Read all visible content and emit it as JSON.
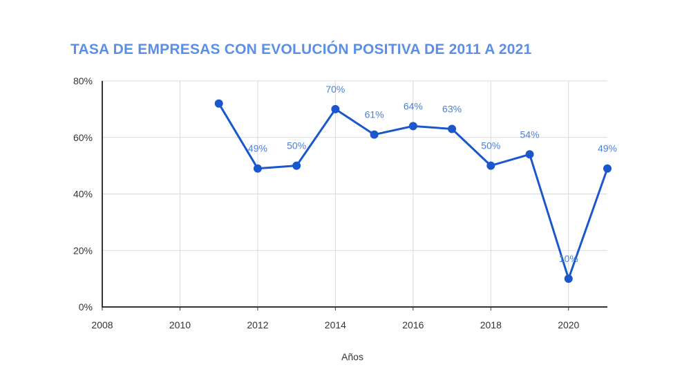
{
  "chart_data": {
    "type": "line",
    "title": "TASA DE EMPRESAS CON EVOLUCIÓN POSITIVA DE 2011 A 2021",
    "xlabel": "Años",
    "ylabel": "",
    "xlim": [
      2008,
      2021
    ],
    "ylim": [
      0,
      80
    ],
    "x_ticks": [
      2008,
      2010,
      2012,
      2014,
      2016,
      2018,
      2020
    ],
    "y_ticks": [
      0,
      20,
      40,
      60,
      80
    ],
    "y_tick_labels": [
      "0%",
      "20%",
      "40%",
      "60%",
      "80%"
    ],
    "grid": true,
    "legend": "none",
    "color": "#1a56cc",
    "label_color": "#4a7fd9",
    "series": [
      {
        "x": [
          2011,
          2012,
          2013,
          2014,
          2015,
          2016,
          2017,
          2018,
          2019,
          2020,
          2021
        ],
        "values": [
          72,
          49,
          50,
          70,
          61,
          64,
          63,
          50,
          54,
          10,
          49
        ],
        "data_labels": [
          "",
          "49%",
          "50%",
          "70%",
          "61%",
          "64%",
          "63%",
          "50%",
          "54%",
          "10%",
          "49%"
        ]
      }
    ]
  }
}
